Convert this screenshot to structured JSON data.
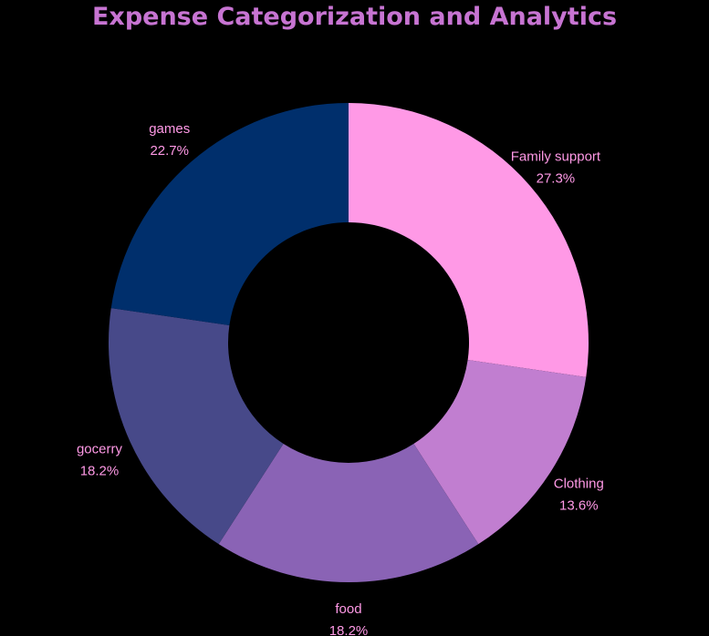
{
  "chart_data": {
    "type": "pie",
    "subtype": "donut",
    "title": "Expense Categorization and Analytics",
    "title_color": "#C774D2",
    "label_color": "#FF99E6",
    "background_color": "#000000",
    "slices": [
      {
        "label": "Family support",
        "value": 27.3,
        "percent_label": "27.3%",
        "color": "#FF99E6"
      },
      {
        "label": "Clothing",
        "value": 13.6,
        "percent_label": "13.6%",
        "color": "#C17ED0"
      },
      {
        "label": "food",
        "value": 18.2,
        "percent_label": "18.2%",
        "color": "#8A63B5"
      },
      {
        "label": "gocerry",
        "value": 18.2,
        "percent_label": "18.2%",
        "color": "#474989"
      },
      {
        "label": "games",
        "value": 22.7,
        "percent_label": "22.7%",
        "color": "#002F6C"
      }
    ],
    "legend": "none"
  }
}
